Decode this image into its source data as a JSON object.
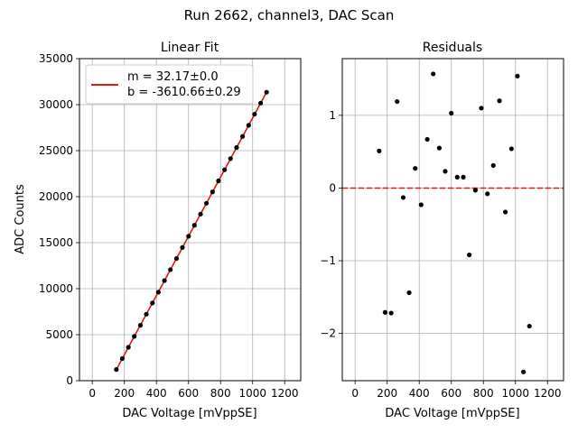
{
  "suptitle": "Run 2662, channel3, DAC Scan",
  "chart_data": [
    {
      "type": "scatter",
      "title": "Linear Fit",
      "xlabel": "DAC Voltage [mVppSE]",
      "ylabel": "ADC Counts",
      "xlim": [
        -80,
        1300
      ],
      "ylim": [
        0,
        35000
      ],
      "xticks": [
        0,
        200,
        400,
        600,
        800,
        1000,
        1200
      ],
      "yticks": [
        0,
        5000,
        10000,
        15000,
        20000,
        25000,
        30000,
        35000
      ],
      "grid": true,
      "legend_position": "top-left",
      "series": [
        {
          "kind": "points",
          "color": "#000000",
          "x": [
            150,
            187,
            225,
            262,
            300,
            337,
            375,
            412,
            450,
            487,
            525,
            562,
            600,
            637,
            675,
            712,
            750,
            787,
            825,
            862,
            900,
            937,
            975,
            1012,
            1050,
            1087
          ],
          "y": [
            1215,
            2405,
            3625,
            4815,
            6025,
            7225,
            8445,
            9625,
            10875,
            12065,
            13275,
            14475,
            15695,
            16885,
            18105,
            19285,
            20515,
            21715,
            22925,
            24135,
            25345,
            26545,
            27755,
            28965,
            30165,
            31355
          ]
        },
        {
          "kind": "fit-line",
          "color": "#e3170a",
          "x": [
            150,
            1087
          ],
          "y": [
            1215,
            31355
          ]
        }
      ],
      "legend": [
        {
          "color": "#e3170a",
          "lines": [
            "m = 32.17±0.0",
            "b = -3610.66±0.29"
          ]
        }
      ]
    },
    {
      "type": "scatter",
      "title": "Residuals",
      "xlabel": "DAC Voltage [mVppSE]",
      "ylabel": "",
      "xlim": [
        -80,
        1300
      ],
      "ylim": [
        -2.65,
        1.78
      ],
      "xticks": [
        0,
        200,
        400,
        600,
        800,
        1000,
        1200
      ],
      "yticks": [
        -2,
        -1,
        0,
        1
      ],
      "grid": true,
      "reference_line": {
        "y": 0,
        "color": "#e3170a",
        "style": "dashed"
      },
      "series": [
        {
          "kind": "points",
          "color": "#000000",
          "x": [
            150,
            187,
            225,
            262,
            300,
            337,
            375,
            412,
            450,
            487,
            525,
            562,
            600,
            637,
            675,
            712,
            750,
            787,
            825,
            862,
            900,
            937,
            975,
            1012,
            1050,
            1087
          ],
          "y": [
            0.51,
            -1.71,
            -1.72,
            1.19,
            -0.13,
            -1.44,
            0.27,
            -0.23,
            0.67,
            1.57,
            0.55,
            0.23,
            1.03,
            0.15,
            0.15,
            -0.92,
            -0.03,
            1.1,
            -0.08,
            0.31,
            1.2,
            -0.33,
            0.54,
            1.54,
            -2.53,
            -1.9
          ]
        }
      ]
    }
  ]
}
